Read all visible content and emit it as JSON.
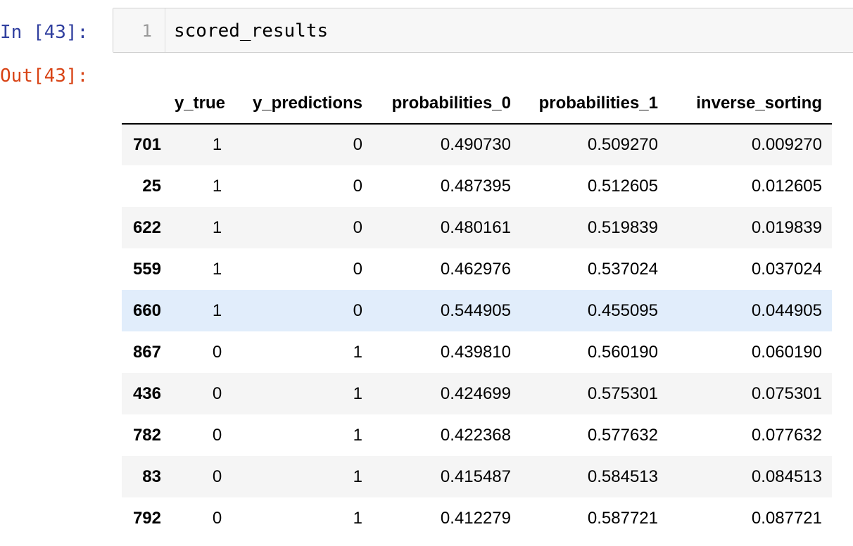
{
  "input_cell": {
    "prompt": "In [43]:",
    "line_number": "1",
    "code": "scored_results"
  },
  "output_cell": {
    "prompt": "Out[43]:",
    "table": {
      "columns": [
        "",
        "y_true",
        "y_predictions",
        "probabilities_0",
        "probabilities_1",
        "inverse_sorting"
      ],
      "rows": [
        {
          "index": "701",
          "y_true": "1",
          "y_predictions": "0",
          "probabilities_0": "0.490730",
          "probabilities_1": "0.509270",
          "inverse_sorting": "0.009270"
        },
        {
          "index": "25",
          "y_true": "1",
          "y_predictions": "0",
          "probabilities_0": "0.487395",
          "probabilities_1": "0.512605",
          "inverse_sorting": "0.012605"
        },
        {
          "index": "622",
          "y_true": "1",
          "y_predictions": "0",
          "probabilities_0": "0.480161",
          "probabilities_1": "0.519839",
          "inverse_sorting": "0.019839"
        },
        {
          "index": "559",
          "y_true": "1",
          "y_predictions": "0",
          "probabilities_0": "0.462976",
          "probabilities_1": "0.537024",
          "inverse_sorting": "0.037024"
        },
        {
          "index": "660",
          "y_true": "1",
          "y_predictions": "0",
          "probabilities_0": "0.544905",
          "probabilities_1": "0.455095",
          "inverse_sorting": "0.044905"
        },
        {
          "index": "867",
          "y_true": "0",
          "y_predictions": "1",
          "probabilities_0": "0.439810",
          "probabilities_1": "0.560190",
          "inverse_sorting": "0.060190"
        },
        {
          "index": "436",
          "y_true": "0",
          "y_predictions": "1",
          "probabilities_0": "0.424699",
          "probabilities_1": "0.575301",
          "inverse_sorting": "0.075301"
        },
        {
          "index": "782",
          "y_true": "0",
          "y_predictions": "1",
          "probabilities_0": "0.422368",
          "probabilities_1": "0.577632",
          "inverse_sorting": "0.077632"
        },
        {
          "index": "83",
          "y_true": "0",
          "y_predictions": "1",
          "probabilities_0": "0.415487",
          "probabilities_1": "0.584513",
          "inverse_sorting": "0.084513"
        },
        {
          "index": "792",
          "y_true": "0",
          "y_predictions": "1",
          "probabilities_0": "0.412279",
          "probabilities_1": "0.587721",
          "inverse_sorting": "0.087721"
        }
      ],
      "hovered_row": 4
    }
  },
  "colors": {
    "in_prompt": "#303f9f",
    "out_prompt": "#d84315",
    "row_stripe": "#f5f5f5",
    "row_hover": "#e1edfb",
    "input_background": "#f7f7f7"
  }
}
